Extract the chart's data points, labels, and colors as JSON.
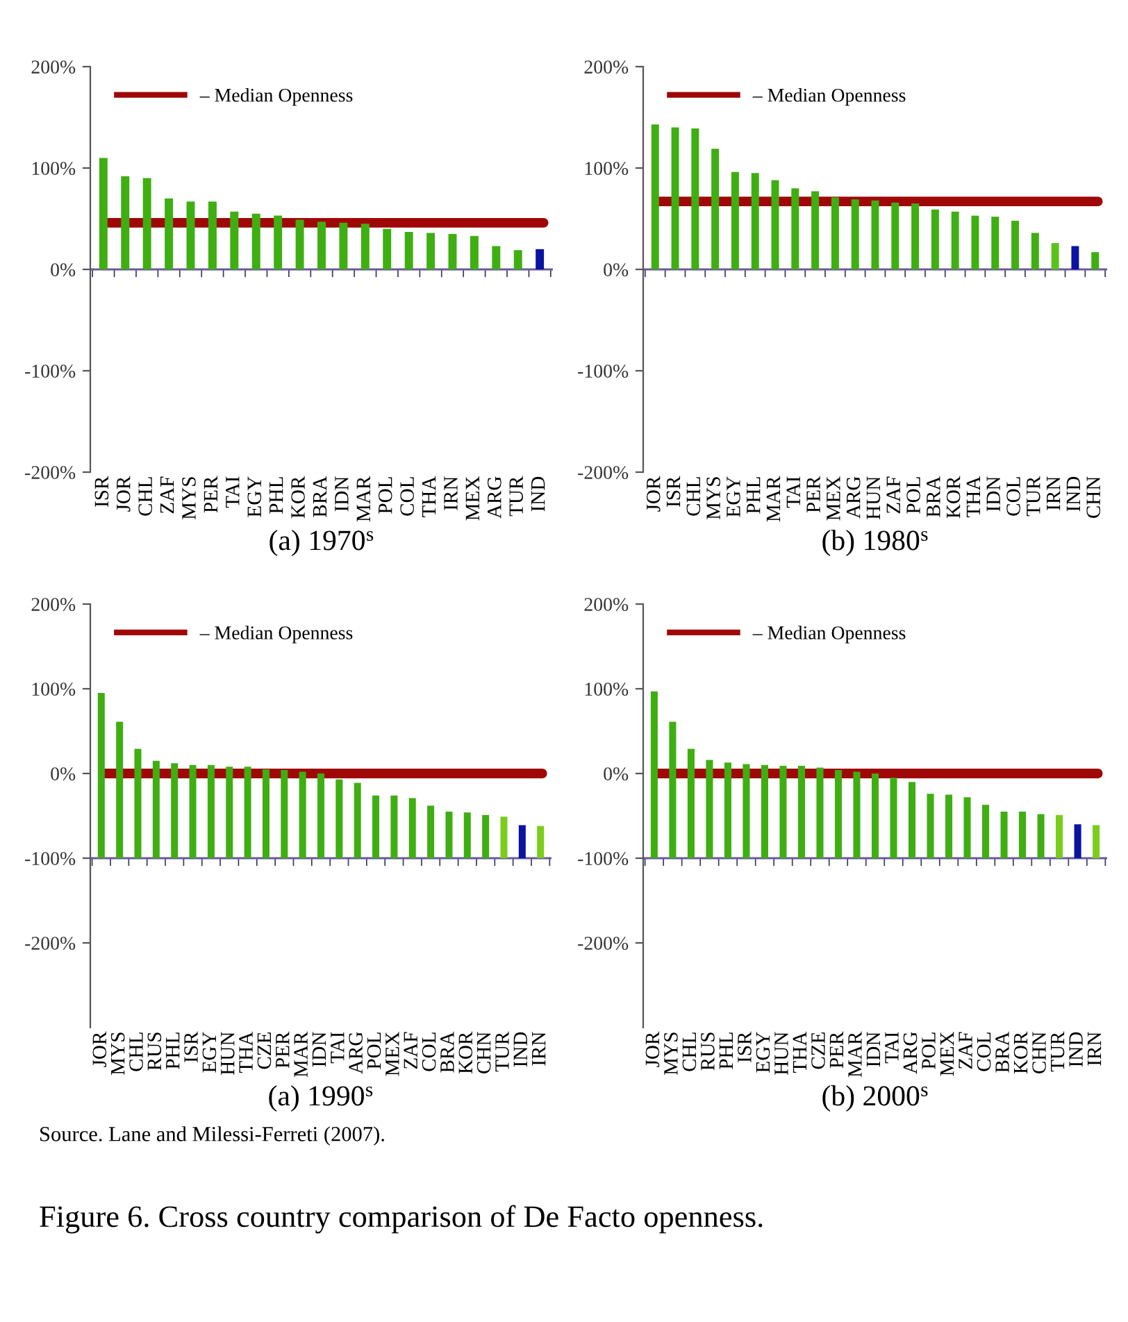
{
  "chart_data": [
    {
      "type": "bar",
      "xlabel": "(a) 1970$^{s}$",
      "categories": [
        "ISR",
        "JOR",
        "CHL",
        "ZAF",
        "MYS",
        "PER",
        "TAI",
        "EGY",
        "PHL",
        "KOR",
        "BRA",
        "IDN",
        "MAR",
        "POL",
        "COL",
        "THA",
        "IRN",
        "MEX",
        "ARG",
        "TUR",
        "IND"
      ],
      "values": [
        110,
        92,
        90,
        70,
        67,
        67,
        57,
        55,
        53,
        49,
        47,
        46,
        45,
        40,
        37,
        36,
        35,
        33,
        23,
        19,
        20
      ],
      "colors": [
        "#3fae12",
        "#3fae12",
        "#3fae12",
        "#3fae12",
        "#3fae12",
        "#3fae12",
        "#3fae12",
        "#3fae12",
        "#3fae12",
        "#3fae12",
        "#3fae12",
        "#3fae12",
        "#3fae12",
        "#3fae12",
        "#3fae12",
        "#3fae12",
        "#3fae12",
        "#3fae12",
        "#3fae12",
        "#3fae12",
        "#0a14a0"
      ],
      "ylim": [
        -200,
        200
      ],
      "yticks": [
        {
          "value": -200,
          "label": "-200%"
        },
        {
          "value": -100,
          "label": "-100%"
        },
        {
          "value": 0,
          "label": "0%"
        },
        {
          "value": 100,
          "label": "100%"
        },
        {
          "value": 200,
          "label": "200%"
        }
      ],
      "ref_lines": [
        {
          "axis": "y",
          "value": 46,
          "label": "– Median Openness",
          "color": "#a00808"
        },
        {
          "axis": "y",
          "value": 0,
          "color": "#6a5a9a"
        }
      ],
      "legend": "top left",
      "grid": false
    },
    {
      "type": "bar",
      "xlabel": "(b) 1980$^{s}$",
      "categories": [
        "JOR",
        "ISR",
        "CHL",
        "MYS",
        "EGY",
        "PHL",
        "MAR",
        "TAI",
        "PER",
        "MEX",
        "ARG",
        "HUN",
        "ZAF",
        "POL",
        "BRA",
        "KOR",
        "THA",
        "IDN",
        "COL",
        "TUR",
        "IRN",
        "IND",
        "CHN"
      ],
      "values": [
        143,
        140,
        139,
        119,
        96,
        95,
        88,
        80,
        77,
        71,
        69,
        68,
        66,
        65,
        59,
        57,
        53,
        52,
        48,
        36,
        26,
        23,
        17
      ],
      "colors": [
        "#3fae12",
        "#3fae12",
        "#3fae12",
        "#3fae12",
        "#3fae12",
        "#3fae12",
        "#3fae12",
        "#3fae12",
        "#3fae12",
        "#3fae12",
        "#3fae12",
        "#3fae12",
        "#3fae12",
        "#3fae12",
        "#3fae12",
        "#3fae12",
        "#3fae12",
        "#3fae12",
        "#3fae12",
        "#3fae12",
        "#5cc21a",
        "#0a14a0",
        "#3fae12"
      ],
      "ylim": [
        -200,
        200
      ],
      "yticks": [
        {
          "value": -200,
          "label": "-200%"
        },
        {
          "value": -100,
          "label": "-100%"
        },
        {
          "value": 0,
          "label": "0%"
        },
        {
          "value": 100,
          "label": "100%"
        },
        {
          "value": 200,
          "label": "200%"
        }
      ],
      "ref_lines": [
        {
          "axis": "y",
          "value": 67,
          "label": "– Median Openness",
          "color": "#a00808"
        },
        {
          "axis": "y",
          "value": 0,
          "color": "#6a5a9a"
        }
      ],
      "legend": "top left",
      "grid": false
    },
    {
      "type": "bar",
      "xlabel": "(a) 1990$^{s}$",
      "categories": [
        "JOR",
        "MYS",
        "CHL",
        "RUS",
        "PHL",
        "ISR",
        "EGY",
        "HUN",
        "THA",
        "CZE",
        "PER",
        "MAR",
        "IDN",
        "TAI",
        "ARG",
        "POL",
        "MEX",
        "ZAF",
        "COL",
        "BRA",
        "KOR",
        "CHN",
        "TUR",
        "IND",
        "IRN"
      ],
      "values": [
        195,
        161,
        129,
        115,
        112,
        110,
        110,
        108,
        108,
        105,
        104,
        102,
        100,
        93,
        89,
        74,
        74,
        71,
        62,
        55,
        54,
        51,
        49,
        39,
        38
      ],
      "base": [
        -100,
        -100,
        -100,
        -100,
        -100,
        -100,
        -100,
        -100,
        -100,
        -100,
        -100,
        -100,
        -100,
        -100,
        -100,
        -100,
        -100,
        -100,
        -100,
        -100,
        -100,
        -100,
        -100,
        -100,
        -100
      ],
      "colors": [
        "#3fae12",
        "#3fae12",
        "#3fae12",
        "#3fae12",
        "#3fae12",
        "#3fae12",
        "#3fae12",
        "#3fae12",
        "#3fae12",
        "#3fae12",
        "#3fae12",
        "#3fae12",
        "#3fae12",
        "#3fae12",
        "#3fae12",
        "#3fae12",
        "#3fae12",
        "#3fae12",
        "#3fae12",
        "#3fae12",
        "#3fae12",
        "#3fae12",
        "#7acd1c",
        "#0a14a0",
        "#7acd1c"
      ],
      "ylim": [
        -300,
        200
      ],
      "yticks": [
        {
          "value": -200,
          "label": "-200%"
        },
        {
          "value": -100,
          "label": "-100%"
        },
        {
          "value": 0,
          "label": "0%"
        },
        {
          "value": 100,
          "label": "100%"
        },
        {
          "value": 200,
          "label": "200%"
        }
      ],
      "ref_lines": [
        {
          "axis": "y",
          "value": 0,
          "label": "– Median Openness",
          "color": "#a00808"
        },
        {
          "axis": "y",
          "value": -100,
          "color": "#6a5a9a"
        }
      ],
      "legend": "top left",
      "grid": false
    },
    {
      "type": "bar",
      "xlabel": "(b) 2000$^{s}$",
      "categories": [
        "JOR",
        "MYS",
        "CHL",
        "RUS",
        "PHL",
        "ISR",
        "EGY",
        "HUN",
        "THA",
        "CZE",
        "PER",
        "MAR",
        "IDN",
        "TAI",
        "ARG",
        "POL",
        "MEX",
        "ZAF",
        "COL",
        "BRA",
        "KOR",
        "CHN",
        "TUR",
        "IND",
        "IRN"
      ],
      "values": [
        197,
        161,
        129,
        116,
        113,
        111,
        110,
        109,
        109,
        107,
        104,
        102,
        100,
        95,
        90,
        76,
        75,
        72,
        63,
        55,
        55,
        52,
        51,
        40,
        39
      ],
      "base": [
        -100,
        -100,
        -100,
        -100,
        -100,
        -100,
        -100,
        -100,
        -100,
        -100,
        -100,
        -100,
        -100,
        -100,
        -100,
        -100,
        -100,
        -100,
        -100,
        -100,
        -100,
        -100,
        -100,
        -100,
        -100
      ],
      "colors": [
        "#3fae12",
        "#3fae12",
        "#3fae12",
        "#3fae12",
        "#3fae12",
        "#3fae12",
        "#3fae12",
        "#3fae12",
        "#3fae12",
        "#3fae12",
        "#3fae12",
        "#3fae12",
        "#3fae12",
        "#3fae12",
        "#3fae12",
        "#3fae12",
        "#3fae12",
        "#3fae12",
        "#3fae12",
        "#3fae12",
        "#3fae12",
        "#3fae12",
        "#7acd1c",
        "#0a14a0",
        "#7acd1c"
      ],
      "ylim": [
        -300,
        200
      ],
      "yticks": [
        {
          "value": -200,
          "label": "-200%"
        },
        {
          "value": -100,
          "label": "-100%"
        },
        {
          "value": 0,
          "label": "0%"
        },
        {
          "value": 100,
          "label": "100%"
        },
        {
          "value": 200,
          "label": "200%"
        }
      ],
      "ref_lines": [
        {
          "axis": "y",
          "value": 0,
          "label": "– Median Openness",
          "color": "#a00808"
        },
        {
          "axis": "y",
          "value": -100,
          "color": "#6a5a9a"
        }
      ],
      "legend": "top left",
      "grid": false,
      "annotations": [
        "Source. Lane and Milessi-Ferreti (2007).",
        "Figure 6. Cross country comparison of De Facto openness."
      ]
    }
  ]
}
